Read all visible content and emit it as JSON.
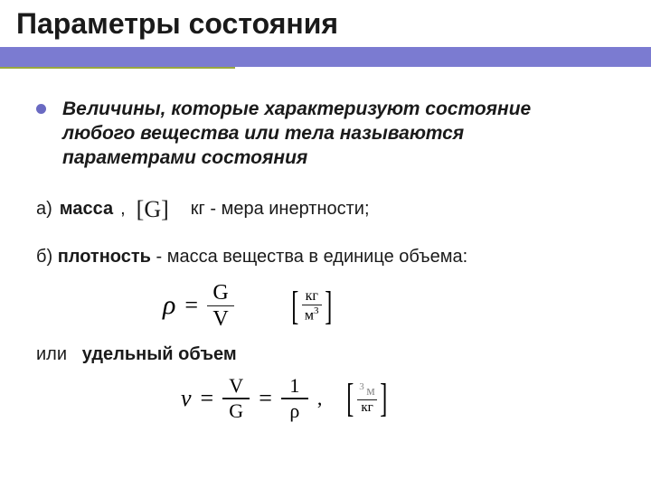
{
  "title": "Параметры состояния",
  "bullet": "Величины, которые характеризуют состояние любого вещества или тела называются параметрами состояния",
  "itemA": {
    "prefix": "а)",
    "term": "масса",
    "comma": ",",
    "symbol_open": "[",
    "symbol": "G",
    "symbol_close": "]",
    "desc": "кг - мера инертности;"
  },
  "itemB": {
    "prefix": "б)",
    "term": "плотность",
    "desc": " - масса вещества в единице объема:"
  },
  "formula1": {
    "lhs": "ρ",
    "eq": "=",
    "num": "G",
    "den": "V",
    "unit_num": "кг",
    "unit_den_base": "м",
    "unit_den_exp": "3"
  },
  "itemOr": {
    "or": "или",
    "term": "удельный объем"
  },
  "formula2": {
    "lhs": "v",
    "eq": "=",
    "num1": "V",
    "den1": "G",
    "eq2": "=",
    "num2": "1",
    "den2": "ρ",
    "comma": ",",
    "unit_num_exp": "3",
    "unit_num_base": "м",
    "unit_den": "кг"
  },
  "colors": {
    "band": "#7b7bd1",
    "accent": "#9aa83f",
    "text": "#1a1a1a",
    "bg": "#ffffff"
  }
}
